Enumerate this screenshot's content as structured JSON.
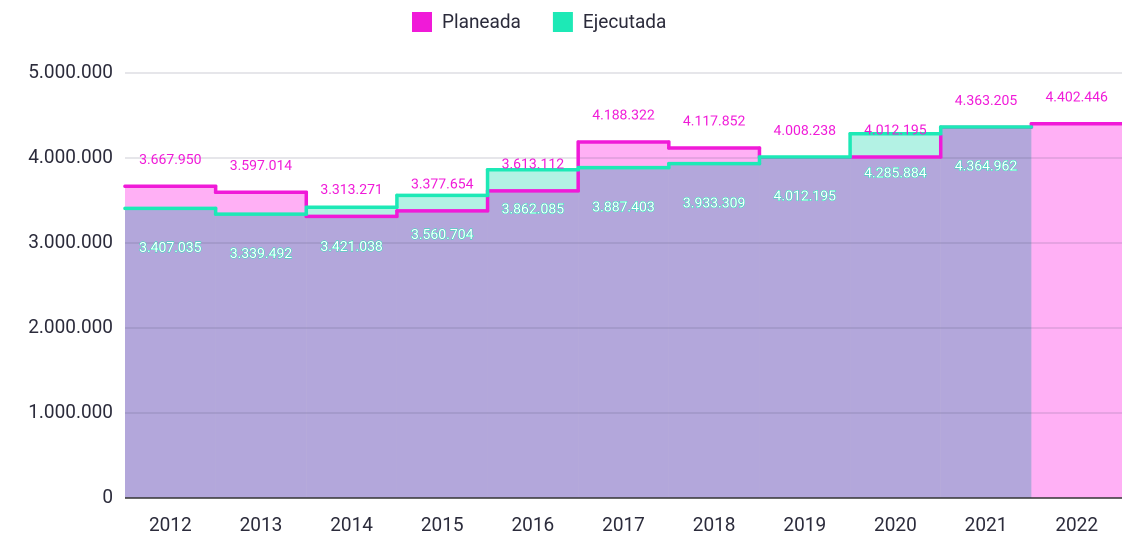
{
  "chart_data": {
    "type": "step-area",
    "categories": [
      "2012",
      "2013",
      "2014",
      "2015",
      "2016",
      "2017",
      "2018",
      "2019",
      "2020",
      "2021",
      "2022"
    ],
    "series": [
      {
        "name": "Planeada",
        "color": "#f01ad8",
        "fill": "#ffb0f5",
        "values": [
          3667950,
          3597014,
          3313271,
          3377654,
          3613112,
          4188322,
          4117852,
          4008238,
          4012195,
          4363205,
          4402446
        ],
        "value_labels": [
          "3.667.950",
          "3.597.014",
          "3.313.271",
          "3.377.654",
          "3.613.112",
          "4.188.322",
          "4.117.852",
          "4.008.238",
          "4.012.195",
          "4.363.205",
          "4.402.446"
        ]
      },
      {
        "name": "Ejecutada",
        "color": "#1de9b6",
        "fill": "#b3f2e4",
        "values": [
          3407035,
          3339492,
          3421038,
          3560704,
          3862085,
          3887403,
          3933309,
          4012195,
          4285884,
          4364962,
          null
        ],
        "value_labels": [
          "3.407.035",
          "3.339.492",
          "3.421.038",
          "3.560.704",
          "3.862.085",
          "3.887.403",
          "3.933.309",
          "4.012.195",
          "4.285.884",
          "4.364.962",
          null
        ]
      }
    ],
    "ylim": [
      0,
      5000000
    ],
    "yticks": [
      0,
      {
        "value": 1000000,
        "label": "1.000.000"
      },
      {
        "value": 2000000,
        "label": "2.000.000"
      },
      {
        "value": 3000000,
        "label": "3.000.000"
      },
      {
        "value": 4000000,
        "label": "4.000.000"
      },
      {
        "value": 5000000,
        "label": "5.000.000"
      }
    ],
    "grid": true,
    "legend": "top"
  }
}
